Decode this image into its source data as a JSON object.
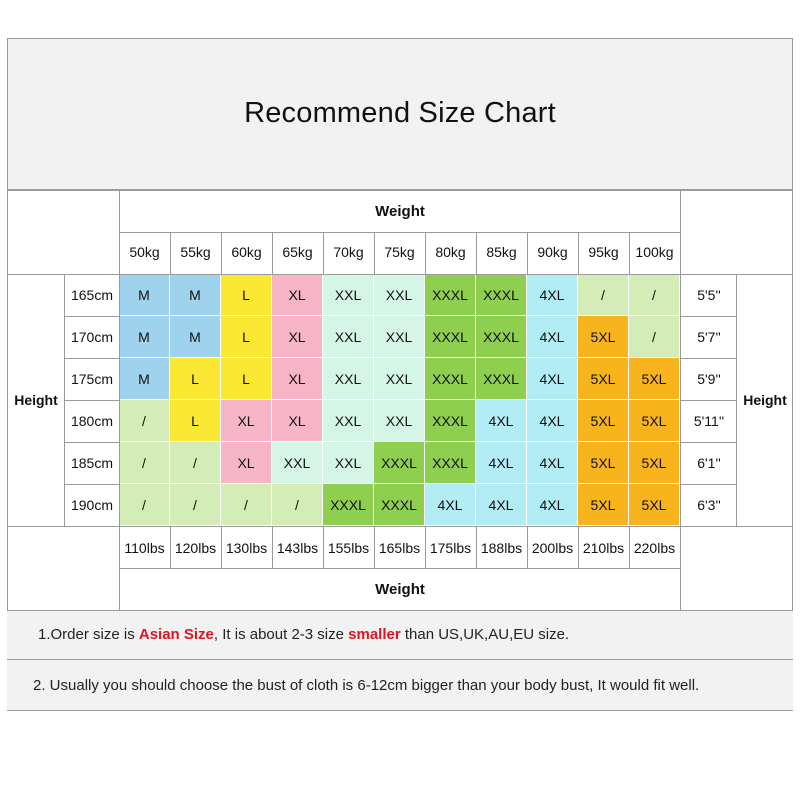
{
  "title": "Recommend Size Chart",
  "weight_label": "Weight",
  "height_label": "Height",
  "weights_kg": [
    "50kg",
    "55kg",
    "60kg",
    "65kg",
    "70kg",
    "75kg",
    "80kg",
    "85kg",
    "90kg",
    "95kg",
    "100kg"
  ],
  "weights_lbs": [
    "110lbs",
    "120lbs",
    "130lbs",
    "143lbs",
    "155lbs",
    "165lbs",
    "175lbs",
    "188lbs",
    "200lbs",
    "210lbs",
    "220lbs"
  ],
  "heights_cm": [
    "165cm",
    "170cm",
    "175cm",
    "180cm",
    "185cm",
    "190cm"
  ],
  "heights_ft": [
    "5'5''",
    "5'7''",
    "5'9''",
    "5'11''",
    "6'1''",
    "6'3''"
  ],
  "sizes": [
    [
      "M",
      "M",
      "L",
      "XL",
      "XXL",
      "XXL",
      "XXXL",
      "XXXL",
      "4XL",
      "/",
      "/"
    ],
    [
      "M",
      "M",
      "L",
      "XL",
      "XXL",
      "XXL",
      "XXXL",
      "XXXL",
      "4XL",
      "5XL",
      "/"
    ],
    [
      "M",
      "L",
      "L",
      "XL",
      "XXL",
      "XXL",
      "XXXL",
      "XXXL",
      "4XL",
      "5XL",
      "5XL"
    ],
    [
      "/",
      "L",
      "XL",
      "XL",
      "XXL",
      "XXL",
      "XXXL",
      "4XL",
      "4XL",
      "5XL",
      "5XL"
    ],
    [
      "/",
      "/",
      "XL",
      "XXL",
      "XXL",
      "XXXL",
      "XXXL",
      "4XL",
      "4XL",
      "5XL",
      "5XL"
    ],
    [
      "/",
      "/",
      "/",
      "/",
      "XXXL",
      "XXXL",
      "4XL",
      "4XL",
      "4XL",
      "5XL",
      "5XL"
    ]
  ],
  "size_colors": {
    "M": "#9fd2ec",
    "L": "#fbe835",
    "XL": "#f7b6c8",
    "XXL": "#d5f5e7",
    "XXXL": "#8fcf4f",
    "4XL": "#b2ecf4",
    "5XL": "#f8b41c",
    "/": "#d4ecb7"
  },
  "notes": {
    "note1_prefix": "1.Order size is ",
    "note1_highlight1": "Asian Size",
    "note1_mid": ", It is about 2-3 size ",
    "note1_highlight2": "smaller",
    "note1_suffix": " than US,UK,AU,EU size.",
    "note2": "2. Usually you should choose the bust of cloth is 6-12cm bigger than your body bust, It would fit well."
  }
}
